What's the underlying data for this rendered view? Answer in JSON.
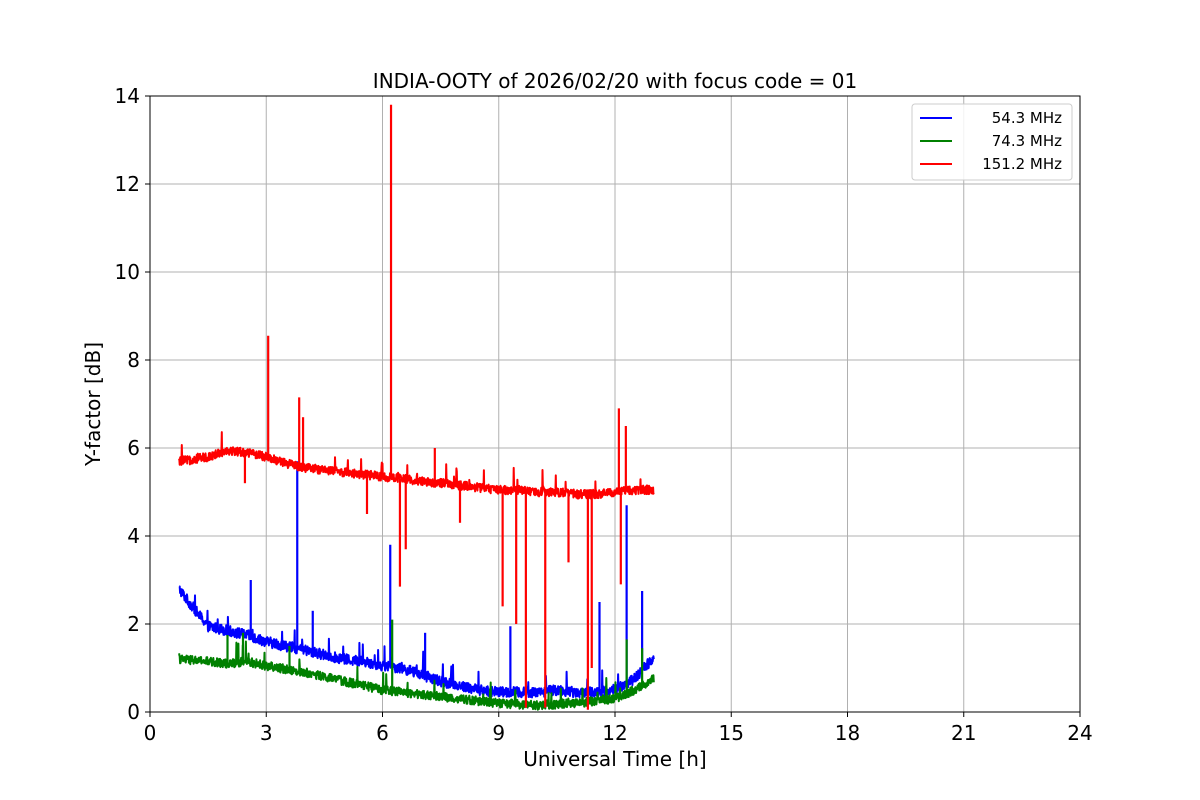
{
  "chart_data": {
    "type": "line",
    "title": "INDIA-OOTY of 2026/02/20 with focus code = 01",
    "xlabel": "Universal Time [h]",
    "ylabel": "Y-factor [dB]",
    "xlim": [
      0,
      24
    ],
    "ylim": [
      0,
      14
    ],
    "xticks": [
      0,
      3,
      6,
      9,
      12,
      15,
      18,
      21,
      24
    ],
    "yticks": [
      0,
      2,
      4,
      6,
      8,
      10,
      12,
      14
    ],
    "grid": true,
    "legend_position": "top-right",
    "series": [
      {
        "name": "54.3 MHz",
        "color": "#0000ff",
        "x": [
          0.75,
          1.0,
          1.5,
          2.0,
          2.5,
          3.0,
          3.5,
          4.0,
          4.5,
          5.0,
          5.5,
          6.0,
          6.5,
          7.0,
          7.5,
          8.0,
          8.5,
          9.0,
          9.5,
          10.0,
          10.5,
          11.0,
          11.5,
          12.0,
          12.5,
          13.0
        ],
        "values": [
          2.8,
          2.5,
          1.95,
          1.85,
          1.75,
          1.6,
          1.5,
          1.4,
          1.3,
          1.2,
          1.15,
          1.05,
          1.0,
          0.85,
          0.7,
          0.6,
          0.5,
          0.45,
          0.45,
          0.45,
          0.5,
          0.45,
          0.45,
          0.5,
          0.75,
          1.25
        ],
        "spikes": [
          {
            "x": 2.6,
            "y": 3.0
          },
          {
            "x": 3.8,
            "y": 5.7
          },
          {
            "x": 4.2,
            "y": 2.3
          },
          {
            "x": 6.2,
            "y": 3.8
          },
          {
            "x": 7.1,
            "y": 1.8
          },
          {
            "x": 9.3,
            "y": 1.95
          },
          {
            "x": 11.6,
            "y": 2.5
          },
          {
            "x": 12.3,
            "y": 4.7
          },
          {
            "x": 12.7,
            "y": 2.75
          }
        ]
      },
      {
        "name": "74.3 MHz",
        "color": "#008000",
        "x": [
          0.75,
          1.5,
          2.0,
          2.5,
          3.0,
          4.0,
          5.0,
          6.0,
          7.0,
          8.0,
          9.0,
          10.0,
          11.0,
          12.0,
          12.5,
          13.0
        ],
        "values": [
          1.2,
          1.15,
          1.1,
          1.15,
          1.05,
          0.9,
          0.7,
          0.5,
          0.4,
          0.3,
          0.2,
          0.15,
          0.2,
          0.3,
          0.5,
          0.75
        ],
        "spikes": [
          {
            "x": 2.0,
            "y": 1.75
          },
          {
            "x": 2.4,
            "y": 1.8
          },
          {
            "x": 3.6,
            "y": 1.5
          },
          {
            "x": 6.25,
            "y": 2.1
          },
          {
            "x": 12.3,
            "y": 1.65
          },
          {
            "x": 12.7,
            "y": 1.45
          }
        ]
      },
      {
        "name": "151.2 MHz",
        "color": "#ff0000",
        "x": [
          0.75,
          1.0,
          1.5,
          2.0,
          2.5,
          3.0,
          3.5,
          4.0,
          4.5,
          5.0,
          5.5,
          6.0,
          6.5,
          7.0,
          7.5,
          8.0,
          8.5,
          9.0,
          9.5,
          10.0,
          10.5,
          11.0,
          11.5,
          12.0,
          12.5,
          13.0
        ],
        "values": [
          5.7,
          5.72,
          5.8,
          5.95,
          5.9,
          5.8,
          5.65,
          5.55,
          5.5,
          5.45,
          5.4,
          5.35,
          5.3,
          5.25,
          5.2,
          5.15,
          5.1,
          5.05,
          5.05,
          5.0,
          5.0,
          4.95,
          4.95,
          5.0,
          5.05,
          5.05
        ],
        "spikes": [
          {
            "x": 3.05,
            "y": 8.55
          },
          {
            "x": 3.85,
            "y": 7.15
          },
          {
            "x": 3.95,
            "y": 6.7
          },
          {
            "x": 6.22,
            "y": 13.8
          },
          {
            "x": 7.35,
            "y": 6.0
          },
          {
            "x": 12.1,
            "y": 6.9
          },
          {
            "x": 12.28,
            "y": 6.5
          },
          {
            "x": 2.45,
            "y": 5.2
          },
          {
            "x": 5.6,
            "y": 4.5
          },
          {
            "x": 6.45,
            "y": 2.85
          },
          {
            "x": 6.6,
            "y": 3.7
          },
          {
            "x": 8.0,
            "y": 4.3
          },
          {
            "x": 9.1,
            "y": 2.4
          },
          {
            "x": 9.45,
            "y": 2.0
          },
          {
            "x": 9.7,
            "y": 0.1
          },
          {
            "x": 10.2,
            "y": 0.1
          },
          {
            "x": 10.8,
            "y": 3.4
          },
          {
            "x": 11.3,
            "y": 0.05
          },
          {
            "x": 11.4,
            "y": 1.0
          },
          {
            "x": 12.15,
            "y": 2.9
          }
        ]
      }
    ]
  }
}
